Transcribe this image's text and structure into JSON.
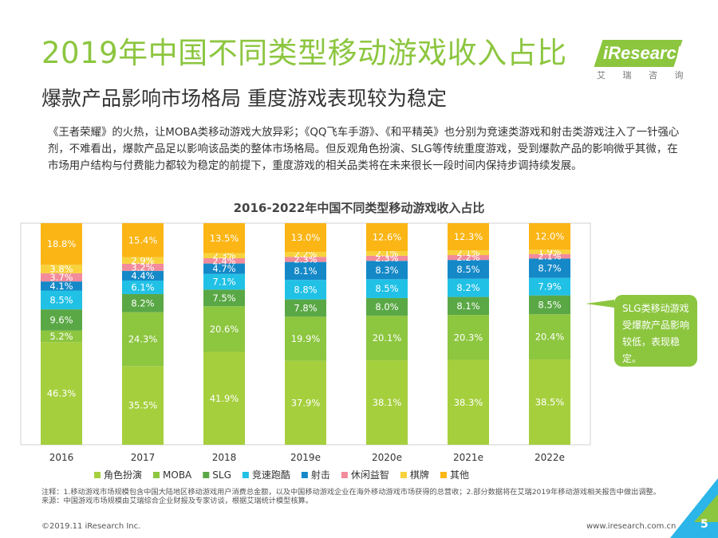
{
  "header": {
    "title": "2019年中国不同类型移动游戏收入占比",
    "subtitle": "爆款产品影响市场格局 重度游戏表现较为稳定"
  },
  "logo": {
    "brand": "iResearch",
    "sub": "艾 瑞 咨 询"
  },
  "description": "《王者荣耀》的火热，让MOBA类移动游戏大放异彩；《QQ飞车手游》、《和平精英》也分别为竞速类游戏和射击类游戏注入了一针强心剂，不难看出，爆款产品足以影响该品类的整体市场格局。但反观角色扮演、SLG等传统重度游戏，受到爆款产品的影响微乎其微，在市场用户结构与付费能力都较为稳定的前提下，重度游戏的相关品类将在未来很长一段时间内保持步调持续发展。",
  "chart_data": {
    "type": "bar",
    "stacked": true,
    "title": "2016-2022年中国不同类型移动游戏收入占比",
    "categories": [
      "2016",
      "2017",
      "2018",
      "2019e",
      "2020e",
      "2021e",
      "2022e"
    ],
    "ylim": [
      0,
      100
    ],
    "unit": "%",
    "legend_position": "bottom",
    "series": [
      {
        "name": "角色扮演",
        "color": "#a6cf3e",
        "values": [
          46.3,
          35.5,
          41.9,
          37.9,
          38.1,
          38.3,
          38.5
        ]
      },
      {
        "name": "MOBA",
        "color": "#8dc63f",
        "values": [
          5.2,
          24.3,
          20.6,
          19.9,
          20.1,
          20.3,
          20.4
        ]
      },
      {
        "name": "SLG",
        "color": "#5aa845",
        "values": [
          9.6,
          8.2,
          7.5,
          7.8,
          8.0,
          8.1,
          8.5
        ]
      },
      {
        "name": "竞速跑酷",
        "color": "#21c1e6",
        "values": [
          8.5,
          6.1,
          7.1,
          8.8,
          8.5,
          8.2,
          7.9
        ]
      },
      {
        "name": "射击",
        "color": "#1589c8",
        "values": [
          4.1,
          4.4,
          4.7,
          8.1,
          8.3,
          8.5,
          8.7
        ]
      },
      {
        "name": "休闲益智",
        "color": "#f28b9b",
        "values": [
          3.7,
          3.2,
          2.4,
          2.3,
          2.3,
          2.2,
          2.1
        ]
      },
      {
        "name": "棋牌",
        "color": "#f7d23c",
        "values": [
          3.8,
          2.9,
          2.3,
          2.2,
          2.1,
          2.1,
          1.9
        ]
      },
      {
        "name": "其他",
        "color": "#fbb515",
        "values": [
          18.8,
          15.4,
          13.5,
          13.0,
          12.6,
          12.3,
          12.0
        ]
      }
    ]
  },
  "callout": {
    "text": "SLG类移动游戏受爆款产品影响较低，表现稳定。"
  },
  "notes": {
    "note": "注释：1.移动游戏市场规模包含中国大陆地区移动游戏用户消费总金额，以及中国移动游戏企业在海外移动游戏市场获得的总营收；2.部分数据将在艾瑞2019年移动游戏相关报告中做出调整。",
    "source": "来源：中国游戏市场规模由艾瑞综合企业财报及专家访谈，根据艾瑞统计模型核算。"
  },
  "footer": {
    "copyright": "©2019.11 iResearch Inc.",
    "url": "www.iresearch.com.cn",
    "page": "5"
  }
}
